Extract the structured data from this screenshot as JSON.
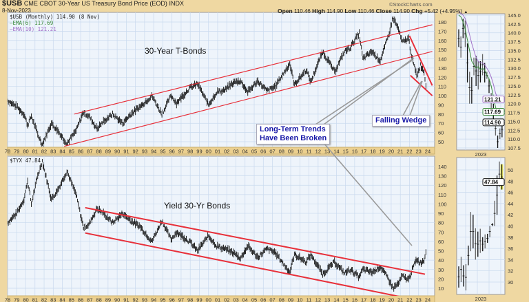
{
  "header": {
    "symbol": "$USB",
    "name": "CME CBOT 30-Year US Treasury Bond Price (EOD)",
    "exchange": "INDX",
    "date": "8-Nov-2023",
    "brand": "©StockCharts.com",
    "open_label": "Open",
    "open": "110.46",
    "high_label": "High",
    "high": "114.90",
    "low_label": "Low",
    "low": "110.46",
    "close_label": "Close",
    "close": "114.90",
    "chg_label": "Chg",
    "chg": "+5.42 (+4.95%)",
    "chg_icon": "up-triangle-icon"
  },
  "legends": {
    "top": "$USB (Monthly) 114.90 (8 Nov)",
    "ema6": "EMA(6) 117.69",
    "ema10": "EMA(10) 121.21",
    "bottom": "$TYX 47.84"
  },
  "annotations": {
    "tbonds": "30-Year T-Bonds",
    "trends_line1": "Long-Term Trends",
    "trends_line2": "Have Been Broken",
    "wedge": "Falling Wedge",
    "yield": "Yield 30-Yr Bonds"
  },
  "colors": {
    "background": "#efd8a2",
    "plot_bg": "#eef4fb",
    "grid": "#c9d9ee",
    "price": "#111111",
    "trendline": "#e8303a",
    "ema6": "#3a8a3a",
    "ema10": "#a070c8",
    "callout": "#9a9a9a",
    "highlight": "#f2f060"
  },
  "chart_data": [
    {
      "type": "line",
      "title": "$USB (Monthly)",
      "x_ticks": [
        "78",
        "79",
        "80",
        "81",
        "82",
        "83",
        "84",
        "85",
        "86",
        "87",
        "88",
        "89",
        "90",
        "91",
        "92",
        "93",
        "94",
        "95",
        "96",
        "97",
        "98",
        "99",
        "00",
        "01",
        "02",
        "03",
        "04",
        "05",
        "06",
        "07",
        "08",
        "09",
        "10",
        "11",
        "12",
        "13",
        "14",
        "15",
        "16",
        "17",
        "18",
        "19",
        "20",
        "21",
        "22",
        "23",
        "24"
      ],
      "y_ticks": [
        50,
        60,
        70,
        80,
        90,
        100,
        110,
        120,
        130,
        140,
        150,
        160,
        170,
        180
      ],
      "ylim": [
        40,
        187
      ],
      "grid": true,
      "series": [
        {
          "name": "$USB",
          "points": [
            [
              1978,
              95
            ],
            [
              1979,
              88
            ],
            [
              1979.8,
              80
            ],
            [
              1980.2,
              68
            ],
            [
              1980.6,
              78
            ],
            [
              1981.3,
              58
            ],
            [
              1981.8,
              47
            ],
            [
              1982.8,
              70
            ],
            [
              1983.5,
              62
            ],
            [
              1984.5,
              48
            ],
            [
              1985.5,
              62
            ],
            [
              1986.3,
              82
            ],
            [
              1986.9,
              78
            ],
            [
              1987.8,
              64
            ],
            [
              1988.5,
              72
            ],
            [
              1989.5,
              80
            ],
            [
              1990.6,
              70
            ],
            [
              1991.5,
              80
            ],
            [
              1992.5,
              88
            ],
            [
              1993.8,
              100
            ],
            [
              1994.9,
              80
            ],
            [
              1995.9,
              100
            ],
            [
              1996.5,
              92
            ],
            [
              1997.9,
              108
            ],
            [
              1998.8,
              113
            ],
            [
              2000.0,
              90
            ],
            [
              2000.9,
              104
            ],
            [
              2001.8,
              106
            ],
            [
              2002.7,
              114
            ],
            [
              2003.5,
              116
            ],
            [
              2004.3,
              104
            ],
            [
              2005.4,
              116
            ],
            [
              2006.4,
              105
            ],
            [
              2007.3,
              110
            ],
            [
              2008.9,
              135
            ],
            [
              2009.4,
              112
            ],
            [
              2010.7,
              128
            ],
            [
              2011.2,
              115
            ],
            [
              2012.5,
              148
            ],
            [
              2013.8,
              126
            ],
            [
              2014.9,
              148
            ],
            [
              2015.5,
              152
            ],
            [
              2016.5,
              168
            ],
            [
              2016.9,
              140
            ],
            [
              2017.9,
              148
            ],
            [
              2018.8,
              138
            ],
            [
              2019.7,
              165
            ],
            [
              2020.2,
              185
            ],
            [
              2020.8,
              172
            ],
            [
              2021.2,
              158
            ],
            [
              2021.9,
              162
            ],
            [
              2022.3,
              140
            ],
            [
              2022.8,
              122
            ],
            [
              2023.2,
              133
            ],
            [
              2023.6,
              126
            ],
            [
              2023.8,
              112
            ],
            [
              2023.85,
              115
            ]
          ]
        }
      ],
      "trendlines": [
        {
          "from": [
            1985.3,
            80
          ],
          "to": [
            2024.5,
            177
          ]
        },
        {
          "from": [
            1984.2,
            45
          ],
          "to": [
            2024.5,
            148
          ]
        },
        {
          "from": [
            2022.0,
            165
          ],
          "to": [
            2024.5,
            111
          ]
        },
        {
          "from": [
            2022.1,
            122
          ],
          "to": [
            2024.5,
            100
          ]
        }
      ]
    },
    {
      "type": "line",
      "title": "$TYX",
      "x_ticks": [
        "78",
        "79",
        "80",
        "81",
        "82",
        "83",
        "84",
        "85",
        "86",
        "87",
        "88",
        "89",
        "90",
        "91",
        "92",
        "93",
        "94",
        "95",
        "96",
        "97",
        "98",
        "99",
        "00",
        "01",
        "02",
        "03",
        "04",
        "05",
        "06",
        "07",
        "08",
        "09",
        "10",
        "11",
        "12",
        "13",
        "14",
        "15",
        "16",
        "17",
        "18",
        "19",
        "20",
        "21",
        "22",
        "23",
        "24"
      ],
      "y_ticks": [
        10,
        20,
        30,
        40,
        50,
        60,
        70,
        80,
        90,
        100,
        110,
        120,
        130,
        140
      ],
      "ylim": [
        2,
        148
      ],
      "grid": true,
      "series": [
        {
          "name": "$TYX",
          "points": [
            [
              1978,
              80
            ],
            [
              1979,
              90
            ],
            [
              1979.8,
              105
            ],
            [
              1980.2,
              125
            ],
            [
              1980.6,
              100
            ],
            [
              1981.3,
              130
            ],
            [
              1981.8,
              146
            ],
            [
              1982.8,
              105
            ],
            [
              1983.5,
              115
            ],
            [
              1984.5,
              135
            ],
            [
              1985.5,
              110
            ],
            [
              1986.3,
              75
            ],
            [
              1986.9,
              78
            ],
            [
              1987.8,
              95
            ],
            [
              1988.5,
              90
            ],
            [
              1989.5,
              80
            ],
            [
              1990.6,
              90
            ],
            [
              1991.5,
              82
            ],
            [
              1992.5,
              76
            ],
            [
              1993.8,
              60
            ],
            [
              1994.9,
              82
            ],
            [
              1995.9,
              62
            ],
            [
              1996.5,
              70
            ],
            [
              1997.9,
              60
            ],
            [
              1998.8,
              50
            ],
            [
              2000.0,
              66
            ],
            [
              2000.9,
              55
            ],
            [
              2001.8,
              52
            ],
            [
              2002.7,
              48
            ],
            [
              2003.5,
              42
            ],
            [
              2004.3,
              55
            ],
            [
              2005.4,
              43
            ],
            [
              2006.4,
              52
            ],
            [
              2007.3,
              48
            ],
            [
              2008.9,
              27
            ],
            [
              2009.4,
              46
            ],
            [
              2010.7,
              38
            ],
            [
              2011.2,
              46
            ],
            [
              2012.5,
              25
            ],
            [
              2013.8,
              38
            ],
            [
              2014.9,
              26
            ],
            [
              2015.5,
              30
            ],
            [
              2016.5,
              22
            ],
            [
              2016.9,
              30
            ],
            [
              2017.9,
              27
            ],
            [
              2018.8,
              33
            ],
            [
              2019.7,
              20
            ],
            [
              2020.2,
              10
            ],
            [
              2020.8,
              15
            ],
            [
              2021.2,
              23
            ],
            [
              2021.9,
              19
            ],
            [
              2022.3,
              30
            ],
            [
              2022.8,
              41
            ],
            [
              2023.2,
              37
            ],
            [
              2023.6,
              40
            ],
            [
              2023.8,
              50
            ],
            [
              2023.85,
              48
            ]
          ]
        }
      ],
      "trendlines": [
        {
          "from": [
            1986.5,
            96
          ],
          "to": [
            2023.7,
            25
          ]
        },
        {
          "from": [
            1986.5,
            69
          ],
          "to": [
            2022.5,
            -2
          ]
        }
      ]
    },
    {
      "type": "bar",
      "title": "$USB 2023",
      "x_ticks": [
        "2023"
      ],
      "y_ticks": [
        107.5,
        110.0,
        112.5,
        115.0,
        117.5,
        120.0,
        122.5,
        125.0,
        127.5,
        130.0,
        132.5,
        135.0,
        137.5,
        140.0,
        142.5,
        145.0
      ],
      "ylim": [
        106.5,
        145.5
      ],
      "bars": [
        [
          141,
          136
        ],
        [
          139,
          133
        ],
        [
          144,
          138.5
        ],
        [
          143.5,
          136
        ],
        [
          137,
          126
        ],
        [
          129,
          120
        ],
        [
          127.5,
          120
        ],
        [
          133,
          128
        ],
        [
          133.5,
          125
        ],
        [
          132,
          124
        ],
        [
          132,
          126
        ],
        [
          134,
          128
        ],
        [
          131.5,
          126
        ],
        [
          129,
          127
        ],
        [
          127,
          123
        ],
        [
          123,
          118
        ],
        [
          120,
          114
        ],
        [
          115,
          111
        ],
        [
          111,
          107.5
        ],
        [
          113,
          110
        ],
        [
          115,
          110.5
        ]
      ],
      "ema6": [
        145,
        144.5,
        143,
        141,
        138,
        135,
        132,
        131,
        130,
        130.5,
        129.5,
        130,
        129.5,
        128,
        127,
        125,
        122,
        119,
        117.5,
        117.6,
        117.69
      ],
      "ema10": [
        146,
        145.5,
        145,
        144,
        142,
        139.5,
        137,
        135,
        133,
        132,
        131.5,
        131.5,
        131,
        130,
        129,
        127.5,
        125.5,
        123,
        121.5,
        121.3,
        121.21
      ],
      "value_labels": {
        "ema10": "121.21",
        "ema6": "117.69",
        "close": "114.90"
      }
    },
    {
      "type": "bar",
      "title": "$TYX 2023",
      "x_ticks": [
        "2023"
      ],
      "y_ticks": [
        30,
        32,
        34,
        36,
        38,
        40,
        42,
        44,
        46,
        48,
        50
      ],
      "ylim": [
        28.2,
        52
      ],
      "bars": [
        [
          32.8,
          29
        ],
        [
          34.5,
          30
        ],
        [
          33,
          29.2
        ],
        [
          33.2,
          28.5
        ],
        [
          36.5,
          33
        ],
        [
          42.5,
          35.5
        ],
        [
          42,
          36
        ],
        [
          39.6,
          34
        ],
        [
          39,
          34.5
        ],
        [
          39.5,
          35.2
        ],
        [
          38,
          35.5
        ],
        [
          38.5,
          36
        ],
        [
          38.6,
          37
        ],
        [
          40,
          38
        ],
        [
          40.5,
          40
        ],
        [
          44.5,
          40
        ],
        [
          49,
          42
        ],
        [
          51.5,
          47
        ],
        [
          51,
          46.5
        ]
      ],
      "value_labels": {
        "close": "47.84"
      }
    }
  ]
}
